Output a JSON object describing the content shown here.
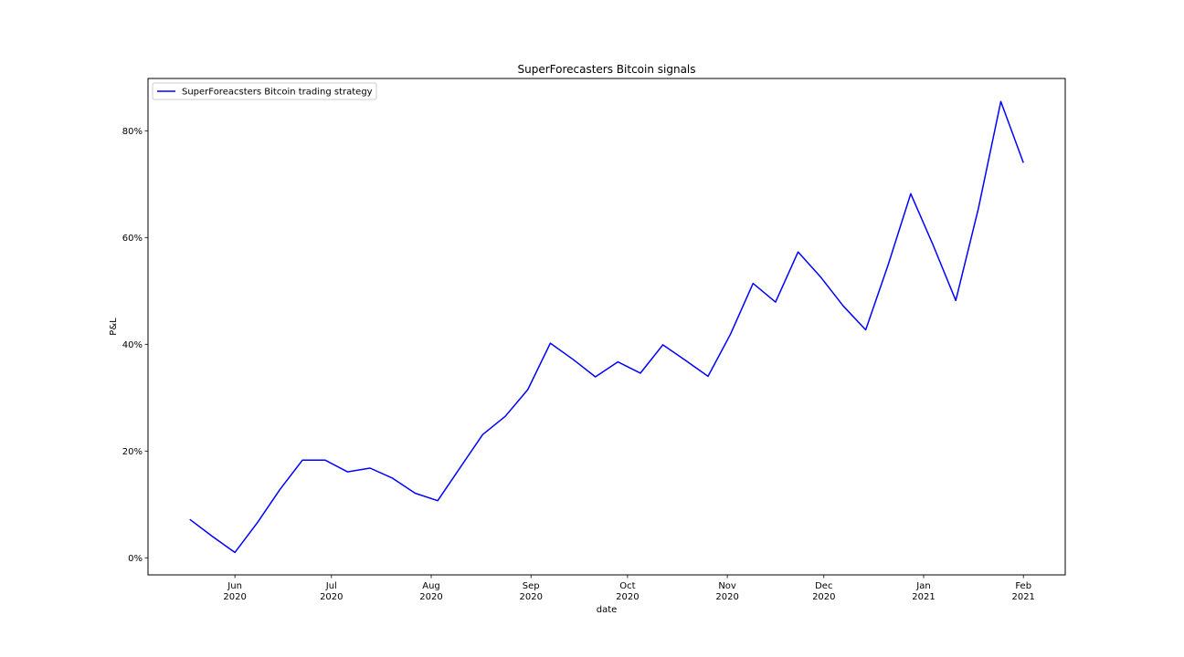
{
  "chart_data": {
    "type": "line",
    "title": "SuperForecasters Bitcoin signals",
    "xlabel": "date",
    "ylabel": "P&L",
    "ylim": [
      -3.2,
      89.8
    ],
    "xlim": [
      "2020-05-05",
      "2021-02-14"
    ],
    "grid": false,
    "legend_position": "upper left",
    "x_ticks": [
      {
        "date": "2020-06-01",
        "label": [
          "Jun",
          "2020"
        ]
      },
      {
        "date": "2020-07-01",
        "label": [
          "Jul",
          "2020"
        ]
      },
      {
        "date": "2020-08-01",
        "label": [
          "Aug",
          "2020"
        ]
      },
      {
        "date": "2020-09-01",
        "label": [
          "Sep",
          "2020"
        ]
      },
      {
        "date": "2020-10-01",
        "label": [
          "Oct",
          "2020"
        ]
      },
      {
        "date": "2020-11-01",
        "label": [
          "Nov",
          "2020"
        ]
      },
      {
        "date": "2020-12-01",
        "label": [
          "Dec",
          "2020"
        ]
      },
      {
        "date": "2021-01-01",
        "label": [
          "Jan",
          "2021"
        ]
      },
      {
        "date": "2021-02-01",
        "label": [
          "Feb",
          "2021"
        ]
      }
    ],
    "y_ticks": [
      {
        "value": 0,
        "label": "0%"
      },
      {
        "value": 20,
        "label": "20%"
      },
      {
        "value": 40,
        "label": "40%"
      },
      {
        "value": 60,
        "label": "60%"
      },
      {
        "value": 80,
        "label": "80%"
      }
    ],
    "series": [
      {
        "name": "SuperForeacsters Bitcoin trading strategy",
        "color": "#0000ff",
        "x": [
          "2020-05-18",
          "2020-05-25",
          "2020-06-01",
          "2020-06-08",
          "2020-06-15",
          "2020-06-22",
          "2020-06-29",
          "2020-07-06",
          "2020-07-13",
          "2020-07-20",
          "2020-07-27",
          "2020-08-03",
          "2020-08-10",
          "2020-08-17",
          "2020-08-24",
          "2020-08-31",
          "2020-09-07",
          "2020-09-14",
          "2020-09-21",
          "2020-09-28",
          "2020-10-05",
          "2020-10-12",
          "2020-10-19",
          "2020-10-26",
          "2020-11-02",
          "2020-11-09",
          "2020-11-16",
          "2020-11-23",
          "2020-11-30",
          "2020-12-07",
          "2020-12-14",
          "2020-12-21",
          "2020-12-28",
          "2021-01-04",
          "2021-01-11",
          "2021-01-18",
          "2021-01-25",
          "2021-02-01"
        ],
        "values": [
          7.2,
          4.0,
          1.0,
          6.6,
          12.8,
          18.3,
          18.3,
          16.1,
          16.8,
          14.9,
          12.1,
          10.7,
          16.9,
          23.1,
          26.5,
          31.5,
          40.2,
          37.2,
          33.9,
          36.7,
          34.6,
          39.9,
          37.0,
          34.0,
          41.9,
          51.4,
          47.9,
          57.3,
          52.6,
          47.2,
          42.7,
          54.9,
          68.2,
          58.5,
          48.2,
          65.4,
          85.5,
          74.0
        ]
      }
    ]
  }
}
